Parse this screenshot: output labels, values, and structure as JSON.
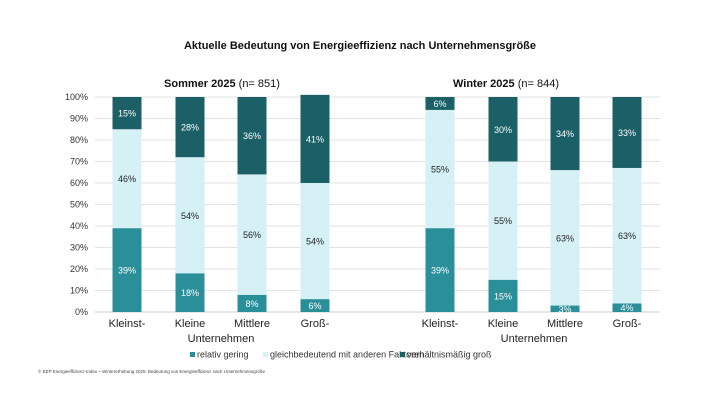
{
  "chart_data": {
    "type": "bar",
    "stacked": true,
    "title": "Aktuelle Bedeutung von Energieeffizienz nach Unternehmensgröße",
    "ylim": [
      0,
      100
    ],
    "yticks": [
      "0%",
      "10%",
      "20%",
      "30%",
      "40%",
      "50%",
      "60%",
      "70%",
      "80%",
      "90%",
      "100%"
    ],
    "grid": true,
    "legend_position": "bottom",
    "legend": [
      {
        "name": "relativ gering",
        "color": "#2a8f99"
      },
      {
        "name": "gleichbedeutend mit anderen Faktoren",
        "color": "#d5f1f5"
      },
      {
        "name": "verhältnismäßig groß",
        "color": "#1b5f67"
      }
    ],
    "categories": [
      "Kleinst-",
      "Kleine",
      "Mittlere",
      "Groß-"
    ],
    "category_group_label": "Unternehmen",
    "panels": [
      {
        "title_bold": "Sommer 2025",
        "title_normal": " (n= 851)",
        "series": [
          {
            "name": "relativ gering",
            "values": [
              39,
              18,
              8,
              6
            ]
          },
          {
            "name": "gleichbedeutend mit anderen Faktoren",
            "values": [
              46,
              54,
              56,
              54
            ]
          },
          {
            "name": "verhältnismäßig groß",
            "values": [
              15,
              28,
              36,
              41
            ]
          }
        ]
      },
      {
        "title_bold": "Winter 2025",
        "title_normal": " (n= 844)",
        "series": [
          {
            "name": "relativ gering",
            "values": [
              39,
              15,
              3,
              4
            ]
          },
          {
            "name": "gleichbedeutend mit anderen Faktoren",
            "values": [
              55,
              55,
              63,
              63
            ]
          },
          {
            "name": "verhältnismäßig groß",
            "values": [
              6,
              30,
              34,
              33
            ]
          }
        ]
      }
    ],
    "label_colors": [
      "#ffffff",
      "#222222",
      "#ffffff"
    ]
  },
  "footer": "© EEP Energieeffizienz-Index – Wintererhebung 2025: Bedeutung von Energieeffizienz nach Unternehmensgröße"
}
